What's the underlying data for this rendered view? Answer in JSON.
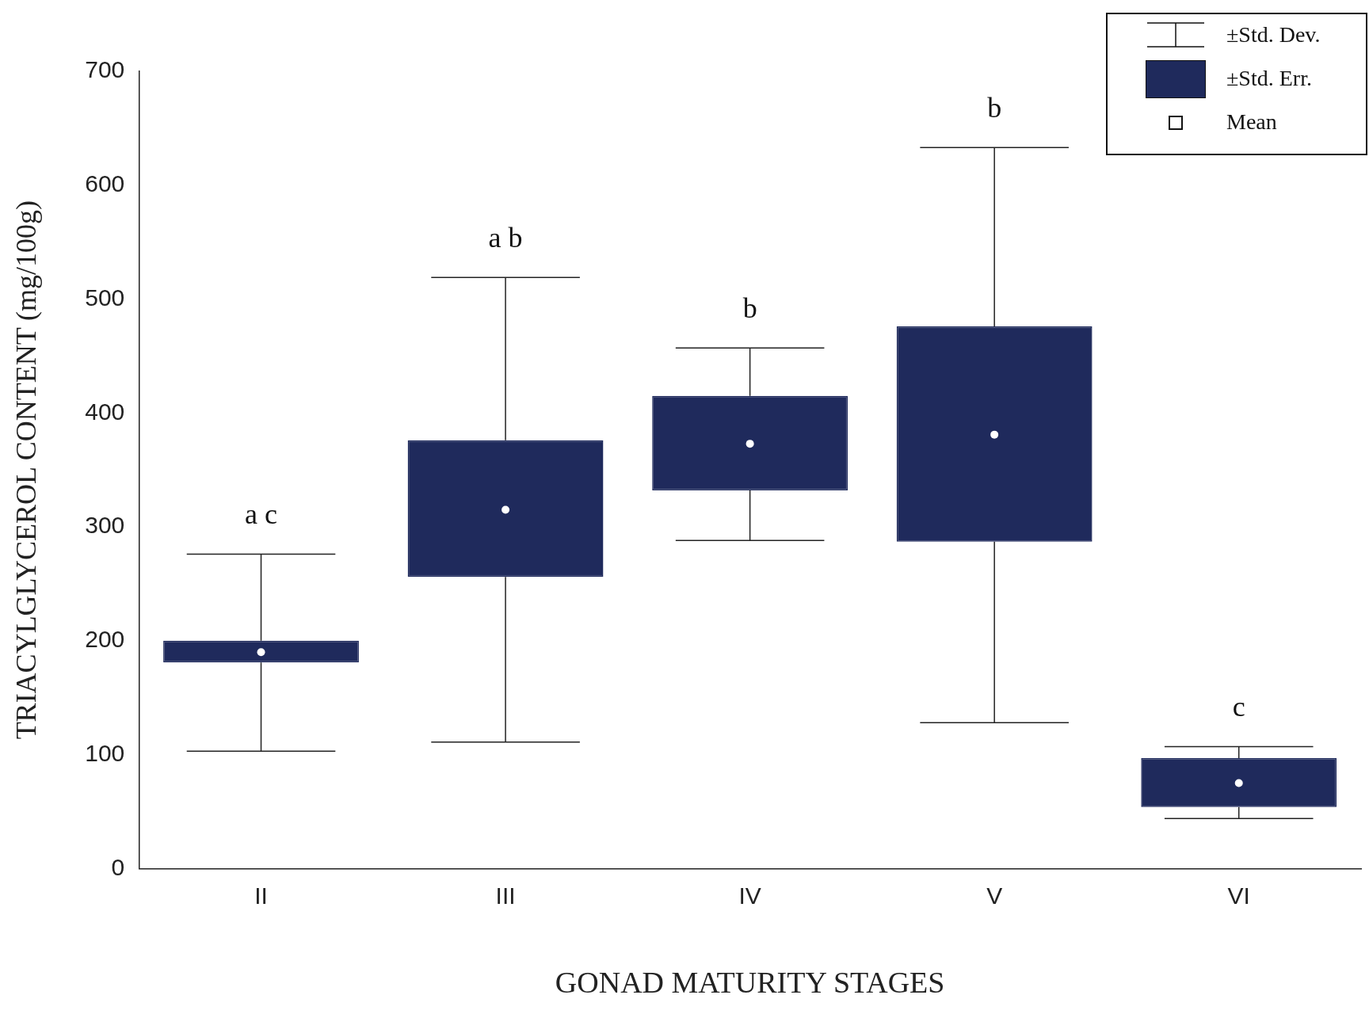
{
  "chart_data": {
    "type": "box",
    "xlabel": "GONAD MATURITY STAGES",
    "ylabel": "TRIACYLGLYCEROL CONTENT (mg/100g)",
    "categories": [
      "II",
      "III",
      "IV",
      "V",
      "VI"
    ],
    "series": [
      {
        "color": "#1f2a5c",
        "boxes": [
          {
            "low": 103,
            "q1": 181,
            "q3": 200,
            "high": 276,
            "mean": 190
          },
          {
            "low": 111,
            "q1": 256,
            "q3": 376,
            "high": 519,
            "mean": 315
          },
          {
            "low": 288,
            "q1": 332,
            "q3": 415,
            "high": 457,
            "mean": 373
          },
          {
            "low": 128,
            "q1": 287,
            "q3": 476,
            "high": 633,
            "mean": 381
          },
          {
            "low": 44,
            "q1": 54,
            "q3": 97,
            "high": 107,
            "mean": 75
          }
        ]
      }
    ],
    "ylim": [
      0,
      700
    ],
    "yticks": [
      0,
      100,
      200,
      300,
      400,
      500,
      600,
      700
    ],
    "grid": false,
    "annotations": [
      "a c",
      "a b",
      "b",
      "b",
      "c",
      "±Std. Dev.",
      "±Std. Err.",
      "Mean"
    ]
  }
}
